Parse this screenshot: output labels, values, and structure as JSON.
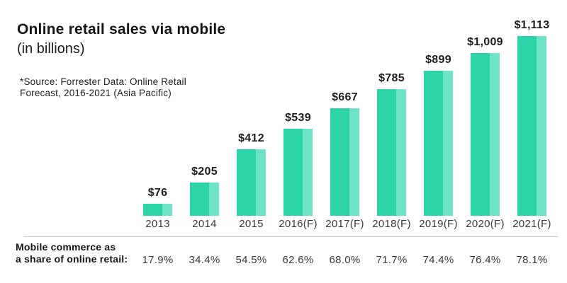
{
  "header": {
    "title": "Online retail sales via mobile",
    "subtitle": "(in billions)",
    "source_line1": "*Source: Forrester Data: Online Retail",
    "source_line2": "Forecast, 2016-2021 (Asia Pacific)"
  },
  "footer": {
    "label_line1": "Mobile commerce as",
    "label_line2": "a share of online retail:"
  },
  "colors": {
    "bar_dark": "#2dd4a8",
    "bar_light": "#6fe3c8",
    "divider": "#c9c9c9"
  },
  "chart_data": {
    "type": "bar",
    "title": "Online retail sales via mobile",
    "subtitle": "(in billions)",
    "source": "*Source: Forrester Data: Online Retail Forecast, 2016-2021 (Asia Pacific)",
    "categories": [
      "2013",
      "2014",
      "2015",
      "2016(F)",
      "2017(F)",
      "2018(F)",
      "2019(F)",
      "2020(F)",
      "2021(F)"
    ],
    "series": [
      {
        "name": "Online retail sales via mobile (in billions USD)",
        "values": [
          76,
          205,
          412,
          539,
          667,
          785,
          899,
          1009,
          1113
        ],
        "labels": [
          "$76",
          "$205",
          "$412",
          "$539",
          "$667",
          "$785",
          "$899",
          "$1,009",
          "$1,113"
        ]
      },
      {
        "name": "Mobile commerce as a share of online retail",
        "values": [
          17.9,
          34.4,
          54.5,
          62.6,
          68.0,
          71.7,
          74.4,
          76.4,
          78.1
        ],
        "labels": [
          "17.9%",
          "34.4%",
          "54.5%",
          "62.6%",
          "68.0%",
          "71.7%",
          "74.4%",
          "76.4%",
          "78.1%"
        ]
      }
    ],
    "ylim": [
      0,
      1113
    ],
    "grid": false,
    "legend": false
  }
}
